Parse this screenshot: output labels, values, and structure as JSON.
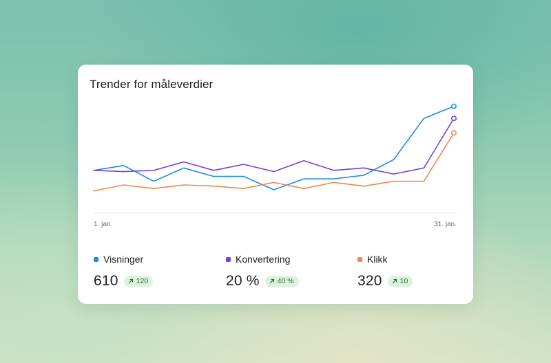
{
  "card": {
    "title": "Trender for måleverdier"
  },
  "chart_data": {
    "type": "line",
    "title": "Trender for måleverdier",
    "x_range": [
      "1. jan.",
      "31. jan."
    ],
    "x_start_label": "1. jan.",
    "x_end_label": "31. jan.",
    "ylim": [
      0,
      100
    ],
    "grid": false,
    "series": [
      {
        "name": "Visninger",
        "color": "#1a8ce6",
        "values": [
          41,
          45,
          32,
          43,
          36,
          36,
          25,
          34,
          34,
          37,
          50,
          84,
          94
        ]
      },
      {
        "name": "Konvertering",
        "color": "#7340d8",
        "values": [
          41,
          40,
          41,
          48,
          41,
          46,
          40,
          49,
          41,
          43,
          38,
          43,
          84
        ]
      },
      {
        "name": "Klikk",
        "color": "#f08848",
        "values": [
          24,
          29,
          26,
          29,
          28,
          26,
          31,
          26,
          31,
          28,
          32,
          32,
          72
        ]
      }
    ]
  },
  "metrics": [
    {
      "name": "Visninger",
      "color": "#1a8ce6",
      "value": "610",
      "delta": "120"
    },
    {
      "name": "Konvertering",
      "color": "#7340d8",
      "value": "20 %",
      "delta": "40 %"
    },
    {
      "name": "Klikk",
      "color": "#f08848",
      "value": "320",
      "delta": "10"
    }
  ],
  "icons": {
    "trend_arrow": "arrow-up-right-icon"
  },
  "colors": {
    "badge_bg": "#dff2e1",
    "badge_text": "#1f6b34"
  }
}
